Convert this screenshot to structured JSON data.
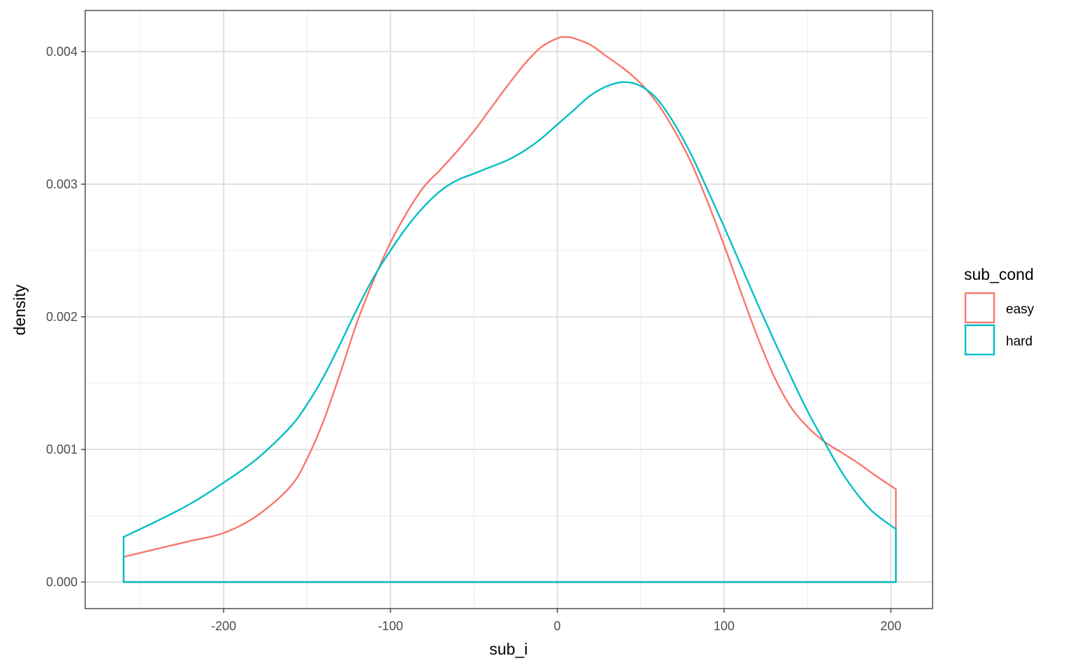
{
  "chart_data": {
    "type": "density",
    "xlabel": "sub_i",
    "ylabel": "density",
    "xlim": [
      -283,
      225
    ],
    "ylim": [
      -0.0002,
      0.00431
    ],
    "x_ticks": [
      -200,
      -100,
      0,
      100,
      200
    ],
    "x_tick_labels": [
      "-200",
      "-100",
      "0",
      "100",
      "200"
    ],
    "y_ticks": [
      0.0,
      0.001,
      0.002,
      0.003,
      0.004
    ],
    "y_tick_labels": [
      "0.000",
      "0.001",
      "0.002",
      "0.003",
      "0.004"
    ],
    "grid": true,
    "legend": {
      "title": "sub_cond",
      "position": "right"
    },
    "series": [
      {
        "name": "easy",
        "color": "#F8766D",
        "points": [
          [
            -260,
            0.00019
          ],
          [
            -240,
            0.00025
          ],
          [
            -220,
            0.00031
          ],
          [
            -200,
            0.00037
          ],
          [
            -180,
            0.0005
          ],
          [
            -160,
            0.00072
          ],
          [
            -150,
            0.00093
          ],
          [
            -140,
            0.00122
          ],
          [
            -130,
            0.00158
          ],
          [
            -120,
            0.00196
          ],
          [
            -110,
            0.00228
          ],
          [
            -100,
            0.00256
          ],
          [
            -90,
            0.00279
          ],
          [
            -80,
            0.00298
          ],
          [
            -70,
            0.00311
          ],
          [
            -60,
            0.00325
          ],
          [
            -50,
            0.0034
          ],
          [
            -40,
            0.00357
          ],
          [
            -30,
            0.00374
          ],
          [
            -20,
            0.0039
          ],
          [
            -10,
            0.00403
          ],
          [
            0,
            0.0041
          ],
          [
            5,
            0.00411
          ],
          [
            10,
            0.0041
          ],
          [
            20,
            0.00405
          ],
          [
            30,
            0.00396
          ],
          [
            40,
            0.00387
          ],
          [
            50,
            0.00376
          ],
          [
            60,
            0.00361
          ],
          [
            70,
            0.00341
          ],
          [
            80,
            0.00317
          ],
          [
            90,
            0.00287
          ],
          [
            100,
            0.00254
          ],
          [
            110,
            0.00219
          ],
          [
            120,
            0.00185
          ],
          [
            130,
            0.00155
          ],
          [
            140,
            0.00132
          ],
          [
            150,
            0.00117
          ],
          [
            160,
            0.00106
          ],
          [
            170,
            0.00098
          ],
          [
            180,
            0.0009
          ],
          [
            190,
            0.00081
          ],
          [
            203,
            0.0007
          ]
        ]
      },
      {
        "name": "hard",
        "color": "#00BFC4",
        "points": [
          [
            -260,
            0.00034
          ],
          [
            -240,
            0.00046
          ],
          [
            -220,
            0.00059
          ],
          [
            -200,
            0.00075
          ],
          [
            -180,
            0.00093
          ],
          [
            -160,
            0.00117
          ],
          [
            -150,
            0.00134
          ],
          [
            -140,
            0.00155
          ],
          [
            -130,
            0.0018
          ],
          [
            -120,
            0.00206
          ],
          [
            -110,
            0.0023
          ],
          [
            -100,
            0.0025
          ],
          [
            -90,
            0.00268
          ],
          [
            -80,
            0.00283
          ],
          [
            -70,
            0.00295
          ],
          [
            -60,
            0.00303
          ],
          [
            -50,
            0.00308
          ],
          [
            -40,
            0.00313
          ],
          [
            -30,
            0.00318
          ],
          [
            -20,
            0.00325
          ],
          [
            -10,
            0.00334
          ],
          [
            0,
            0.00345
          ],
          [
            10,
            0.00356
          ],
          [
            20,
            0.00367
          ],
          [
            30,
            0.00374
          ],
          [
            40,
            0.00377
          ],
          [
            50,
            0.00374
          ],
          [
            60,
            0.00364
          ],
          [
            70,
            0.00346
          ],
          [
            80,
            0.00323
          ],
          [
            90,
            0.00296
          ],
          [
            100,
            0.00268
          ],
          [
            110,
            0.00239
          ],
          [
            120,
            0.0021
          ],
          [
            130,
            0.00182
          ],
          [
            140,
            0.00155
          ],
          [
            150,
            0.00129
          ],
          [
            160,
            0.00106
          ],
          [
            170,
            0.00084
          ],
          [
            180,
            0.00066
          ],
          [
            190,
            0.00052
          ],
          [
            203,
            0.0004
          ]
        ]
      }
    ]
  }
}
